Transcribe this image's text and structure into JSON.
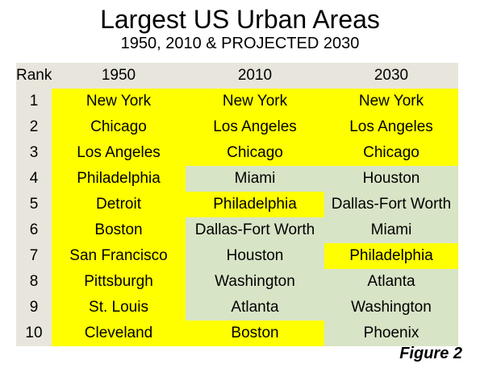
{
  "title": "Largest US Urban Areas",
  "subtitle": "1950, 2010 & PROJECTED 2030",
  "figure_label": "Figure 2",
  "colors": {
    "header_bg": "#e8e6dc",
    "highlight_yellow": "#ffff00",
    "highlight_green": "#d8e4c6"
  },
  "chart_data": {
    "type": "table",
    "title": "Largest US Urban Areas",
    "subtitle": "1950, 2010 & PROJECTED 2030",
    "columns": [
      "Rank",
      "1950",
      "2010",
      "2030"
    ],
    "rows": [
      {
        "rank": "1",
        "cells": [
          {
            "text": "New York",
            "color": "yellow"
          },
          {
            "text": "New York",
            "color": "yellow"
          },
          {
            "text": "New York",
            "color": "yellow"
          }
        ]
      },
      {
        "rank": "2",
        "cells": [
          {
            "text": "Chicago",
            "color": "yellow"
          },
          {
            "text": "Los Angeles",
            "color": "yellow"
          },
          {
            "text": "Los Angeles",
            "color": "yellow"
          }
        ]
      },
      {
        "rank": "3",
        "cells": [
          {
            "text": "Los Angeles",
            "color": "yellow"
          },
          {
            "text": "Chicago",
            "color": "yellow"
          },
          {
            "text": "Chicago",
            "color": "yellow"
          }
        ]
      },
      {
        "rank": "4",
        "cells": [
          {
            "text": "Philadelphia",
            "color": "yellow"
          },
          {
            "text": "Miami",
            "color": "green"
          },
          {
            "text": "Houston",
            "color": "green"
          }
        ]
      },
      {
        "rank": "5",
        "cells": [
          {
            "text": "Detroit",
            "color": "yellow"
          },
          {
            "text": "Philadelphia",
            "color": "yellow"
          },
          {
            "text": "Dallas-Fort Worth",
            "color": "green"
          }
        ]
      },
      {
        "rank": "6",
        "cells": [
          {
            "text": "Boston",
            "color": "yellow"
          },
          {
            "text": "Dallas-Fort Worth",
            "color": "green"
          },
          {
            "text": "Miami",
            "color": "green"
          }
        ]
      },
      {
        "rank": "7",
        "cells": [
          {
            "text": "San Francisco",
            "color": "yellow"
          },
          {
            "text": "Houston",
            "color": "green"
          },
          {
            "text": "Philadelphia",
            "color": "yellow"
          }
        ]
      },
      {
        "rank": "8",
        "cells": [
          {
            "text": "Pittsburgh",
            "color": "yellow"
          },
          {
            "text": "Washington",
            "color": "green"
          },
          {
            "text": "Atlanta",
            "color": "green"
          }
        ]
      },
      {
        "rank": "9",
        "cells": [
          {
            "text": "St. Louis",
            "color": "yellow"
          },
          {
            "text": "Atlanta",
            "color": "green"
          },
          {
            "text": "Washington",
            "color": "green"
          }
        ]
      },
      {
        "rank": "10",
        "cells": [
          {
            "text": "Cleveland",
            "color": "yellow"
          },
          {
            "text": "Boston",
            "color": "yellow"
          },
          {
            "text": "Phoenix",
            "color": "green"
          }
        ]
      }
    ]
  }
}
